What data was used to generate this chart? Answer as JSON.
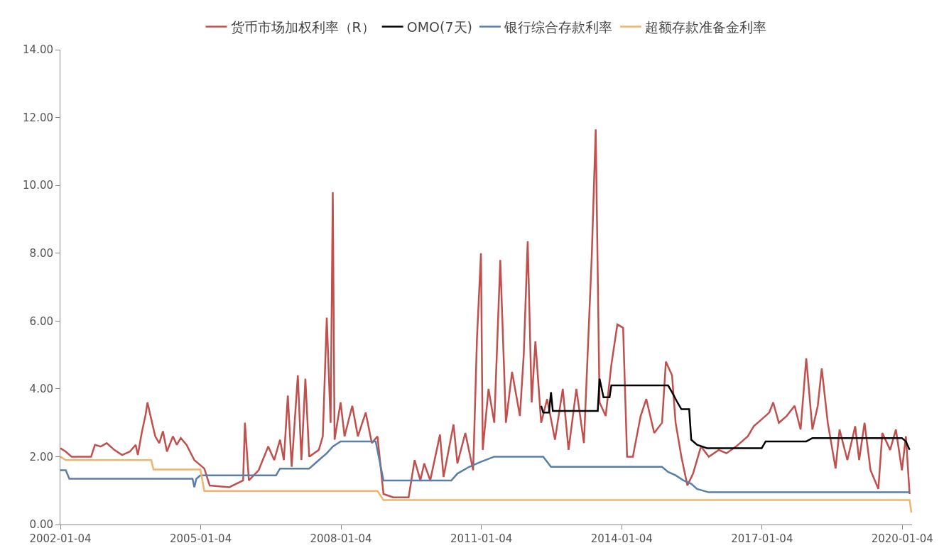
{
  "chart_data": {
    "type": "line",
    "legend": "top",
    "grid": false,
    "marker": "none",
    "xlim": [
      "2002-01-04",
      "2020-03-20"
    ],
    "xticks": [
      "2002-01-04",
      "2005-01-04",
      "2008-01-04",
      "2011-01-04",
      "2014-01-04",
      "2017-01-04",
      "2020-01-04"
    ],
    "ylim": [
      0,
      14
    ],
    "yticks": [
      {
        "value": 0,
        "label": "0.00"
      },
      {
        "value": 2,
        "label": "2.00"
      },
      {
        "value": 4,
        "label": "4.00"
      },
      {
        "value": 6,
        "label": "6.00"
      },
      {
        "value": 8,
        "label": "8.00"
      },
      {
        "value": 10,
        "label": "10.00"
      },
      {
        "value": 12,
        "label": "12.00"
      },
      {
        "value": 14,
        "label": "14.00"
      }
    ],
    "series": [
      {
        "name": "货币市场加权利率（R）",
        "color": "#c0504d",
        "x": [
          "2002-01-04",
          "2002-02-15",
          "2002-04-01",
          "2002-09-01",
          "2002-10-01",
          "2002-11-15",
          "2003-01-01",
          "2003-03-01",
          "2003-05-01",
          "2003-07-01",
          "2003-08-15",
          "2003-09-01",
          "2003-10-01",
          "2003-11-01",
          "2003-11-15",
          "2003-12-15",
          "2004-01-15",
          "2004-02-15",
          "2004-03-15",
          "2004-04-15",
          "2004-06-01",
          "2004-07-01",
          "2004-08-01",
          "2004-09-15",
          "2004-11-15",
          "2005-01-01",
          "2005-02-01",
          "2005-03-15",
          "2005-08-15",
          "2005-12-01",
          "2005-12-15",
          "2006-01-15",
          "2006-04-01",
          "2006-06-15",
          "2006-08-01",
          "2006-09-15",
          "2006-10-15",
          "2006-11-15",
          "2006-12-15",
          "2007-02-01",
          "2007-03-01",
          "2007-04-01",
          "2007-05-01",
          "2007-07-15",
          "2007-08-15",
          "2007-09-15",
          "2007-10-15",
          "2007-11-01",
          "2007-11-15",
          "2008-01-01",
          "2008-02-01",
          "2008-04-01",
          "2008-05-15",
          "2008-07-15",
          "2008-09-01",
          "2008-10-15",
          "2008-12-01",
          "2009-02-15",
          "2009-06-15",
          "2009-08-01",
          "2009-09-15",
          "2009-10-15",
          "2009-12-01",
          "2010-02-15",
          "2010-03-15",
          "2010-06-01",
          "2010-07-01",
          "2010-09-01",
          "2010-11-01",
          "2010-12-01",
          "2011-01-01",
          "2011-01-15",
          "2011-03-01",
          "2011-04-15",
          "2011-06-01",
          "2011-07-15",
          "2011-09-01",
          "2011-11-01",
          "2011-12-01",
          "2012-01-01",
          "2012-02-01",
          "2012-03-01",
          "2012-04-15",
          "2012-06-01",
          "2012-08-01",
          "2012-10-01",
          "2012-11-15",
          "2013-01-15",
          "2013-03-15",
          "2013-05-15",
          "2013-06-15",
          "2013-07-15",
          "2013-09-01",
          "2013-10-15",
          "2013-12-01",
          "2014-01-15",
          "2014-02-15",
          "2014-04-01",
          "2014-06-01",
          "2014-07-15",
          "2014-09-15",
          "2014-11-15",
          "2014-12-15",
          "2015-02-01",
          "2015-03-01",
          "2015-04-15",
          "2015-06-01",
          "2015-07-15",
          "2015-09-15",
          "2015-11-15",
          "2016-02-01",
          "2016-04-01",
          "2016-06-15",
          "2016-09-15",
          "2016-11-01",
          "2017-01-01",
          "2017-03-01",
          "2017-04-01",
          "2017-05-15",
          "2017-07-15",
          "2017-09-15",
          "2017-11-01",
          "2017-12-15",
          "2018-02-01",
          "2018-03-15",
          "2018-04-15",
          "2018-06-01",
          "2018-08-01",
          "2018-09-01",
          "2018-11-01",
          "2019-01-01",
          "2019-02-01",
          "2019-03-15",
          "2019-05-01",
          "2019-07-01",
          "2019-08-01",
          "2019-10-01",
          "2019-11-15",
          "2020-01-01",
          "2020-02-01",
          "2020-03-01"
        ],
        "values": [
          2.25,
          2.15,
          2.0,
          2.0,
          2.35,
          2.3,
          2.4,
          2.2,
          2.05,
          2.15,
          2.35,
          2.05,
          2.7,
          3.25,
          3.6,
          3.1,
          2.6,
          2.4,
          2.75,
          2.15,
          2.6,
          2.35,
          2.55,
          2.35,
          1.9,
          1.75,
          1.65,
          1.15,
          1.1,
          1.3,
          3.0,
          1.3,
          1.6,
          2.3,
          1.9,
          2.5,
          1.9,
          3.8,
          1.7,
          4.4,
          1.9,
          4.3,
          2.0,
          2.2,
          2.6,
          6.1,
          3.0,
          9.8,
          2.5,
          3.6,
          2.6,
          3.5,
          2.6,
          3.3,
          2.4,
          2.6,
          0.9,
          0.8,
          0.8,
          1.9,
          1.3,
          1.8,
          1.3,
          2.65,
          1.4,
          2.95,
          1.8,
          2.7,
          1.6,
          5.5,
          8.0,
          2.2,
          4.0,
          3.0,
          7.8,
          3.0,
          4.5,
          3.2,
          5.0,
          8.35,
          3.6,
          5.4,
          3.0,
          3.7,
          2.5,
          4.0,
          2.2,
          4.0,
          2.4,
          7.9,
          11.65,
          3.6,
          3.2,
          4.7,
          5.9,
          5.8,
          2.0,
          2.0,
          3.2,
          3.7,
          2.7,
          3.0,
          4.8,
          4.4,
          3.0,
          2.0,
          1.15,
          1.5,
          2.3,
          2.0,
          2.2,
          2.1,
          2.3,
          2.6,
          2.9,
          3.1,
          3.3,
          3.6,
          3.0,
          3.2,
          3.5,
          2.8,
          4.9,
          2.8,
          3.5,
          4.6,
          3.0,
          1.65,
          2.8,
          1.9,
          2.9,
          1.9,
          3.0,
          1.6,
          1.05,
          2.7,
          2.2,
          2.8,
          1.6,
          2.6,
          0.9
        ]
      },
      {
        "name": "OMO(7天)",
        "color": "#000000",
        "x": [
          "2012-04-15",
          "2012-05-01",
          "2012-06-15",
          "2012-07-01",
          "2012-07-15",
          "2013-07-01",
          "2013-07-15",
          "2013-08-15",
          "2013-10-01",
          "2013-10-15",
          "2015-01-01",
          "2015-02-01",
          "2015-03-15",
          "2015-04-15",
          "2015-06-15",
          "2015-07-01",
          "2015-08-15",
          "2015-11-01",
          "2017-01-01",
          "2017-02-01",
          "2017-12-15",
          "2018-02-01",
          "2020-01-01",
          "2020-02-01",
          "2020-03-01"
        ],
        "values": [
          3.5,
          3.3,
          3.3,
          3.9,
          3.35,
          3.35,
          4.3,
          3.75,
          3.75,
          4.1,
          4.1,
          3.9,
          3.6,
          3.4,
          3.4,
          2.5,
          2.35,
          2.25,
          2.25,
          2.45,
          2.45,
          2.55,
          2.55,
          2.45,
          2.2
        ]
      },
      {
        "name": "银行综合存款利率",
        "color": "#5a7fa6",
        "x": [
          "2002-01-04",
          "2002-02-15",
          "2002-03-15",
          "2004-11-01",
          "2004-11-15",
          "2004-12-01",
          "2005-01-01",
          "2006-08-15",
          "2006-09-15",
          "2007-05-01",
          "2007-07-15",
          "2007-09-15",
          "2007-11-01",
          "2008-01-01",
          "2008-10-01",
          "2008-12-01",
          "2010-05-15",
          "2010-07-01",
          "2010-10-01",
          "2011-01-01",
          "2011-04-15",
          "2012-05-01",
          "2012-07-01",
          "2014-11-15",
          "2015-01-01",
          "2015-03-01",
          "2015-05-01",
          "2015-07-01",
          "2015-08-15",
          "2015-11-15",
          "2020-03-01"
        ],
        "values": [
          1.6,
          1.6,
          1.35,
          1.35,
          1.1,
          1.35,
          1.45,
          1.45,
          1.65,
          1.65,
          1.9,
          2.1,
          2.3,
          2.45,
          2.45,
          1.3,
          1.3,
          1.5,
          1.7,
          1.85,
          2.0,
          2.0,
          1.7,
          1.7,
          1.55,
          1.45,
          1.3,
          1.2,
          1.05,
          0.95,
          0.95
        ]
      },
      {
        "name": "超额存款准备金利率",
        "color": "#f0b46c",
        "x": [
          "2002-01-04",
          "2002-02-15",
          "2003-12-15",
          "2004-01-01",
          "2005-01-01",
          "2005-02-01",
          "2008-10-15",
          "2008-12-01",
          "2020-03-01",
          "2020-03-15"
        ],
        "values": [
          2.0,
          1.9,
          1.9,
          1.62,
          1.62,
          0.99,
          0.99,
          0.72,
          0.72,
          0.35
        ]
      }
    ]
  }
}
